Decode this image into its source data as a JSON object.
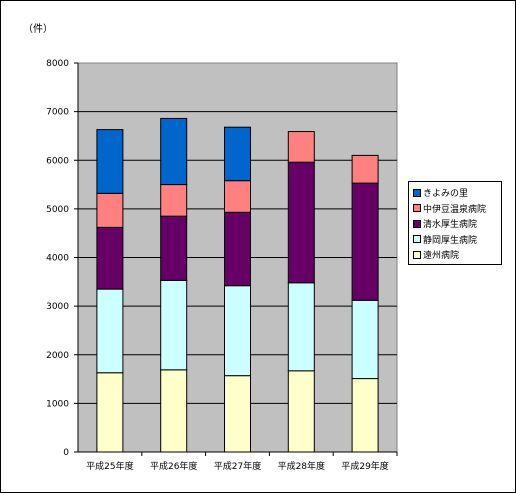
{
  "chart_data": {
    "type": "bar",
    "stacked": true,
    "unit_label": "（件）",
    "categories": [
      "平成25年度",
      "平成26年度",
      "平成27年度",
      "平成28年度",
      "平成29年度"
    ],
    "ylim": [
      0,
      8000
    ],
    "yticks": [
      0,
      1000,
      2000,
      3000,
      4000,
      5000,
      6000,
      7000,
      8000
    ],
    "grid": true,
    "legend_position": "right",
    "series": [
      {
        "name": "遠州病院",
        "color": "#ffffcc",
        "values": [
          1630,
          1690,
          1570,
          1670,
          1510
        ]
      },
      {
        "name": "静岡厚生病院",
        "color": "#ccffff",
        "values": [
          1720,
          1840,
          1850,
          1810,
          1610
        ]
      },
      {
        "name": "清水厚生病院",
        "color": "#660066",
        "values": [
          1270,
          1320,
          1510,
          2480,
          2410
        ]
      },
      {
        "name": "中伊豆温泉病院",
        "color": "#ff8080",
        "values": [
          700,
          650,
          650,
          630,
          570
        ]
      },
      {
        "name": "きよみの里",
        "color": "#0066cc",
        "values": [
          1310,
          1360,
          1100,
          0,
          0
        ]
      }
    ]
  }
}
